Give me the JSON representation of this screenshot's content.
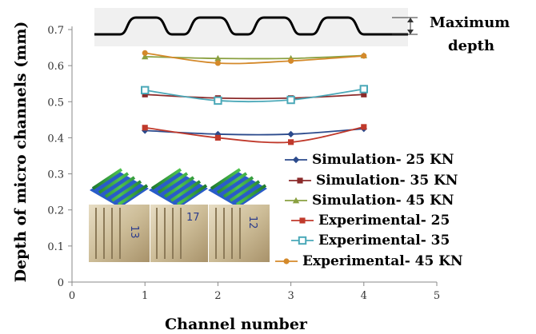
{
  "chart_data": {
    "type": "line",
    "xlabel": "Channel number",
    "ylabel": "Depth of micro channels (mm)",
    "xlim": [
      0,
      5
    ],
    "ylim": [
      0,
      0.7
    ],
    "xticks": [
      0,
      1,
      2,
      3,
      4,
      5
    ],
    "yticks": [
      0,
      0.1,
      0.2,
      0.3,
      0.4,
      0.5,
      0.6,
      0.7
    ],
    "x": [
      1,
      2,
      3,
      4
    ],
    "series": [
      {
        "name": "Simulation- 25 KN",
        "values": [
          0.42,
          0.41,
          0.41,
          0.425
        ],
        "color": "#2b4a8c",
        "marker": "diamond"
      },
      {
        "name": "Simulation- 35 KN",
        "values": [
          0.52,
          0.51,
          0.51,
          0.52
        ],
        "color": "#8b2a2a",
        "marker": "square"
      },
      {
        "name": "Simulation- 45 KN",
        "values": [
          0.625,
          0.62,
          0.62,
          0.628
        ],
        "color": "#8aa040",
        "marker": "triangle"
      },
      {
        "name": "Experimental- 25",
        "values": [
          0.428,
          0.4,
          0.388,
          0.43
        ],
        "color": "#c0392b",
        "marker": "square"
      },
      {
        "name": "Experimental- 35",
        "values": [
          0.532,
          0.503,
          0.505,
          0.535
        ],
        "color": "#4aa8b8",
        "marker": "square-open"
      },
      {
        "name": "Experimental- 45 KN",
        "values": [
          0.635,
          0.607,
          0.613,
          0.627
        ],
        "color": "#d4892a",
        "marker": "circle"
      }
    ],
    "legend_position": "bottom-right",
    "annotation": {
      "line1": "Maximum",
      "line2": "depth"
    },
    "inset_labels": [
      "13",
      "17",
      "12"
    ]
  }
}
